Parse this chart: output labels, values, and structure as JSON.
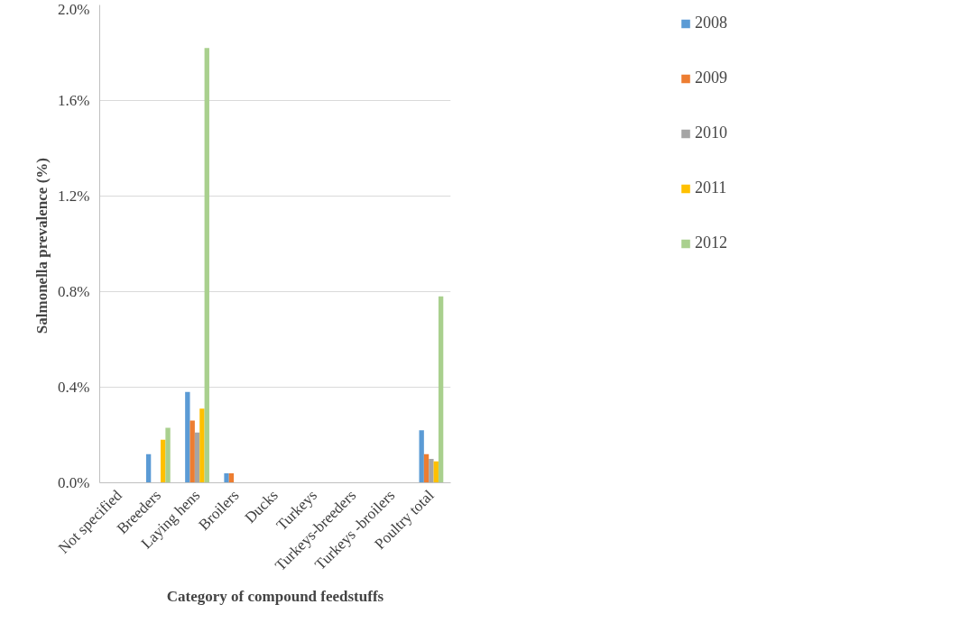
{
  "chart_data": {
    "type": "bar",
    "xlabel": "Category of compound feedstuffs",
    "ylabel": "Salmonella  prevalence (%)",
    "categories": [
      "Not specified",
      "Breeders",
      "Laying hens",
      "Broilers",
      "Ducks",
      "Turkeys",
      "Turkeys-breeders",
      "Turkeys -broilers",
      "Poultry total"
    ],
    "series": [
      {
        "name": "2008",
        "color": "#5b9bd5",
        "values": [
          0,
          0.12,
          0.38,
          0.04,
          0,
          0,
          0,
          0,
          0.22
        ]
      },
      {
        "name": "2009",
        "color": "#ed7d31",
        "values": [
          0,
          0,
          0.26,
          0.04,
          0,
          0,
          0,
          0,
          0.12
        ]
      },
      {
        "name": "2010",
        "color": "#a5a5a5",
        "values": [
          0,
          0,
          0.21,
          0,
          0,
          0,
          0,
          0,
          0.1
        ]
      },
      {
        "name": "2011",
        "color": "#ffc000",
        "values": [
          0,
          0.18,
          0.31,
          0,
          0,
          0,
          0,
          0,
          0.09
        ]
      },
      {
        "name": "2012",
        "color": "#a9d08e",
        "values": [
          0,
          0.23,
          1.82,
          0,
          0,
          0,
          0,
          0,
          0.78
        ]
      }
    ],
    "ylim": [
      0,
      2.0
    ],
    "yticks": [
      {
        "value": 0,
        "label": "0.0%"
      },
      {
        "value": 0.4,
        "label": "0.4%"
      },
      {
        "value": 0.8,
        "label": "0.8%"
      },
      {
        "value": 1.2,
        "label": "1.2%"
      },
      {
        "value": 1.6,
        "label": "1.6%"
      },
      {
        "value": 2.0,
        "label": "2.0%"
      }
    ],
    "grid": "y",
    "legend": "right"
  }
}
